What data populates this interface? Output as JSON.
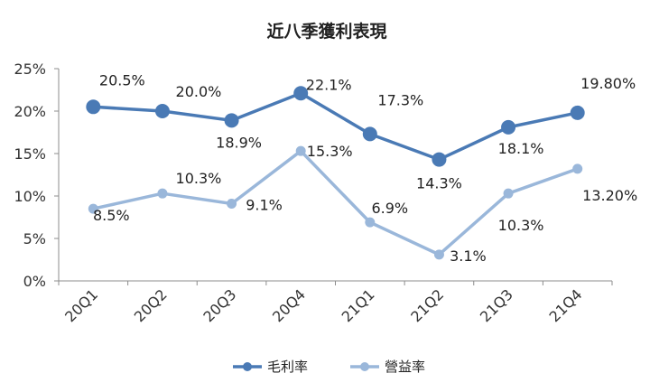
{
  "chart_data": {
    "type": "line",
    "title": "近八季獲利表現",
    "categories": [
      "20Q1",
      "20Q2",
      "20Q3",
      "20Q4",
      "21Q1",
      "21Q2",
      "21Q3",
      "21Q4"
    ],
    "yticks": [
      "0%",
      "5%",
      "10%",
      "15%",
      "20%",
      "25%"
    ],
    "ylim": [
      0,
      25
    ],
    "grid": false,
    "legend_position": "bottom",
    "series": [
      {
        "name": "毛利率",
        "color": "#4a7ab5",
        "values": [
          20.5,
          20.0,
          18.9,
          22.1,
          17.3,
          14.3,
          18.1,
          19.8
        ],
        "labels": [
          "20.5%",
          "20.0%",
          "18.9%",
          "22.1%",
          "17.3%",
          "14.3%",
          "18.1%",
          "19.80%"
        ]
      },
      {
        "name": "營益率",
        "color": "#9ab7da",
        "values": [
          8.5,
          10.3,
          9.1,
          15.3,
          6.9,
          3.1,
          10.3,
          13.2
        ],
        "labels": [
          "8.5%",
          "10.3%",
          "9.1%",
          "15.3%",
          "6.9%",
          "3.1%",
          "10.3%",
          "13.20%"
        ]
      }
    ]
  }
}
